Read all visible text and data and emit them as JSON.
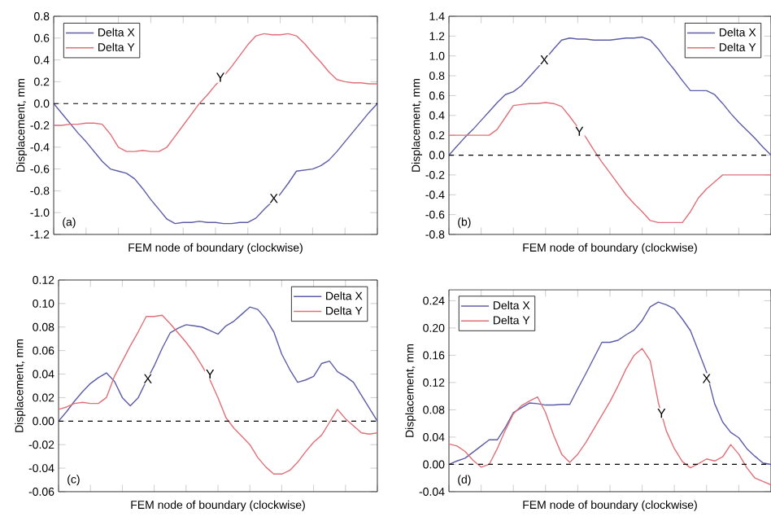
{
  "chart_data": [
    {
      "type": "line",
      "xlabel": "FEM node of boundary (clockwise)",
      "ylabel": "Displacement, mm",
      "marker": "none",
      "legend": "top left",
      "ylim": [
        -1.2,
        0.8
      ],
      "categories": [
        null,
        null,
        null,
        null,
        null,
        null,
        null,
        null,
        null,
        null,
        null,
        null,
        null,
        null,
        null,
        null,
        null,
        null,
        null,
        null,
        null,
        null,
        null,
        null,
        null,
        null,
        null,
        null,
        null,
        null,
        null,
        null,
        null,
        null,
        null,
        null,
        null,
        null,
        null,
        null,
        null
      ],
      "yticks": [
        {
          "value": -1.2,
          "label": "-1.2"
        },
        {
          "value": -1.0,
          "label": "-1.0"
        },
        {
          "value": -0.8,
          "label": "-0.8"
        },
        {
          "value": -0.6,
          "label": "-0.6"
        },
        {
          "value": -0.4,
          "label": "-0.4"
        },
        {
          "value": -0.2,
          "label": "-0.2"
        },
        {
          "value": 0,
          "label": "0.0"
        },
        {
          "value": 0.2,
          "label": "0.2"
        },
        {
          "value": 0.4,
          "label": "0.4"
        },
        {
          "value": 0.6,
          "label": "0.6"
        },
        {
          "value": 0.8,
          "label": "0.8"
        }
      ],
      "ref_lines": [
        {
          "axis": "y",
          "value": 0,
          "line_style": "dashed"
        }
      ],
      "annotations": [
        "(a)",
        {
          "text": "X",
          "y": -0.87
        },
        {
          "text": "Y",
          "y": 0.24
        }
      ],
      "series": [
        {
          "name": "Delta X",
          "color": "#5c5ca8",
          "values": [
            0,
            -0.09,
            -0.18,
            -0.27,
            -0.35,
            -0.44,
            -0.53,
            -0.6,
            -0.62,
            -0.64,
            -0.69,
            -0.78,
            -0.88,
            -0.97,
            -1.06,
            -1.1,
            -1.09,
            -1.09,
            -1.08,
            -1.09,
            -1.09,
            -1.1,
            -1.1,
            -1.09,
            -1.09,
            -1.05,
            -0.97,
            -0.9,
            -0.83,
            -0.73,
            -0.62,
            -0.61,
            -0.6,
            -0.57,
            -0.52,
            -0.44,
            -0.35,
            -0.26,
            -0.17,
            -0.08,
            0
          ]
        },
        {
          "name": "Delta Y",
          "color": "#e07078",
          "values": [
            -0.2,
            -0.2,
            -0.19,
            -0.19,
            -0.18,
            -0.18,
            -0.19,
            -0.28,
            -0.4,
            -0.44,
            -0.44,
            -0.43,
            -0.44,
            -0.44,
            -0.4,
            -0.3,
            -0.2,
            -0.1,
            0,
            0.08,
            0.17,
            0.25,
            0.34,
            0.44,
            0.54,
            0.62,
            0.64,
            0.63,
            0.63,
            0.64,
            0.62,
            0.55,
            0.46,
            0.38,
            0.29,
            0.22,
            0.2,
            0.19,
            0.19,
            0.18,
            0.18
          ]
        }
      ]
    },
    {
      "type": "line",
      "xlabel": "FEM node of boundary (clockwise)",
      "ylabel": "Displacement, mm",
      "marker": "none",
      "legend": "top right",
      "ylim": [
        -0.8,
        1.4
      ],
      "categories": [
        null,
        null,
        null,
        null,
        null,
        null,
        null,
        null,
        null,
        null,
        null,
        null,
        null,
        null,
        null,
        null,
        null,
        null,
        null,
        null,
        null,
        null,
        null,
        null,
        null,
        null,
        null,
        null,
        null,
        null,
        null,
        null,
        null,
        null,
        null,
        null,
        null,
        null,
        null,
        null,
        null
      ],
      "yticks": [
        {
          "value": -0.8,
          "label": "-0.8"
        },
        {
          "value": -0.6,
          "label": "-0.6"
        },
        {
          "value": -0.4,
          "label": "-0.4"
        },
        {
          "value": -0.2,
          "label": "-0.2"
        },
        {
          "value": 0,
          "label": "0.0"
        },
        {
          "value": 0.2,
          "label": "0.2"
        },
        {
          "value": 0.4,
          "label": "0.4"
        },
        {
          "value": 0.6,
          "label": "0.6"
        },
        {
          "value": 0.8,
          "label": "0.8"
        },
        {
          "value": 1.0,
          "label": "1.0"
        },
        {
          "value": 1.2,
          "label": "1.2"
        },
        {
          "value": 1.4,
          "label": "1.4"
        }
      ],
      "ref_lines": [
        {
          "axis": "y",
          "value": 0,
          "line_style": "dashed"
        }
      ],
      "annotations": [
        "(b)",
        {
          "text": "X",
          "y": 0.96
        },
        {
          "text": "Y",
          "y": 0.24
        }
      ],
      "series": [
        {
          "name": "Delta X",
          "color": "#5c5ca8",
          "values": [
            0,
            0.09,
            0.18,
            0.26,
            0.35,
            0.44,
            0.53,
            0.61,
            0.64,
            0.7,
            0.79,
            0.88,
            0.97,
            1.07,
            1.16,
            1.18,
            1.17,
            1.17,
            1.16,
            1.16,
            1.16,
            1.17,
            1.18,
            1.18,
            1.19,
            1.16,
            1.07,
            0.96,
            0.86,
            0.75,
            0.65,
            0.65,
            0.65,
            0.61,
            0.52,
            0.42,
            0.33,
            0.25,
            0.17,
            0.08,
            0
          ]
        },
        {
          "name": "Delta Y",
          "color": "#e07078",
          "values": [
            0.2,
            0.2,
            0.2,
            0.2,
            0.2,
            0.2,
            0.26,
            0.38,
            0.5,
            0.51,
            0.52,
            0.52,
            0.53,
            0.52,
            0.49,
            0.39,
            0.28,
            0.18,
            0.05,
            -0.07,
            -0.18,
            -0.29,
            -0.4,
            -0.49,
            -0.57,
            -0.66,
            -0.68,
            -0.68,
            -0.68,
            -0.68,
            -0.57,
            -0.43,
            -0.34,
            -0.27,
            -0.2,
            -0.2,
            -0.2,
            -0.2,
            -0.2,
            -0.2,
            -0.2
          ]
        }
      ]
    },
    {
      "type": "line",
      "xlabel": "FEM node of boundary (clockwise)",
      "ylabel": "Displacement, mm",
      "marker": "none",
      "legend": "top right",
      "ylim": [
        -0.06,
        0.12
      ],
      "categories": [
        null,
        null,
        null,
        null,
        null,
        null,
        null,
        null,
        null,
        null,
        null,
        null,
        null,
        null,
        null,
        null,
        null,
        null,
        null,
        null,
        null,
        null,
        null,
        null,
        null,
        null,
        null,
        null,
        null,
        null,
        null,
        null,
        null,
        null,
        null,
        null,
        null,
        null,
        null,
        null,
        null
      ],
      "yticks": [
        {
          "value": -0.06,
          "label": "-0.06"
        },
        {
          "value": -0.04,
          "label": "-0.04"
        },
        {
          "value": -0.02,
          "label": "-0.02"
        },
        {
          "value": 0,
          "label": "0.00"
        },
        {
          "value": 0.02,
          "label": "0.02"
        },
        {
          "value": 0.04,
          "label": "0.04"
        },
        {
          "value": 0.06,
          "label": "0.06"
        },
        {
          "value": 0.08,
          "label": "0.08"
        },
        {
          "value": 0.1,
          "label": "0.10"
        },
        {
          "value": 0.12,
          "label": "0.12"
        }
      ],
      "ref_lines": [
        {
          "axis": "y",
          "value": 0,
          "line_style": "dashed"
        }
      ],
      "annotations": [
        "(c)",
        {
          "text": "X",
          "y": 0.036
        },
        {
          "text": "Y",
          "y": 0.04
        }
      ],
      "series": [
        {
          "name": "Delta X",
          "color": "#5c5ca8",
          "values": [
            0,
            0.008,
            0.017,
            0.025,
            0.032,
            0.037,
            0.041,
            0.034,
            0.02,
            0.013,
            0.02,
            0.034,
            0.047,
            0.062,
            0.075,
            0.079,
            0.082,
            0.081,
            0.08,
            0.077,
            0.074,
            0.081,
            0.085,
            0.091,
            0.097,
            0.095,
            0.087,
            0.076,
            0.057,
            0.044,
            0.033,
            0.035,
            0.038,
            0.049,
            0.051,
            0.042,
            0.038,
            0.033,
            0.022,
            0.011,
            0
          ]
        },
        {
          "name": "Delta Y",
          "color": "#e07078",
          "values": [
            0.01,
            0.012,
            0.015,
            0.016,
            0.015,
            0.015,
            0.02,
            0.038,
            0.051,
            0.064,
            0.076,
            0.089,
            0.089,
            0.09,
            0.083,
            0.075,
            0.067,
            0.058,
            0.047,
            0.035,
            0.02,
            0.003,
            -0.006,
            -0.013,
            -0.02,
            -0.031,
            -0.039,
            -0.045,
            -0.045,
            -0.042,
            -0.035,
            -0.026,
            -0.018,
            -0.012,
            -0.001,
            0.01,
            0.002,
            -0.004,
            -0.01,
            -0.011,
            -0.01
          ]
        }
      ]
    },
    {
      "type": "line",
      "xlabel": "FEM node of boundary (clockwise)",
      "ylabel": "Displacement, mm",
      "marker": "none",
      "legend": "top left",
      "ylim": [
        -0.04,
        0.256
      ],
      "categories": [
        null,
        null,
        null,
        null,
        null,
        null,
        null,
        null,
        null,
        null,
        null,
        null,
        null,
        null,
        null,
        null,
        null,
        null,
        null,
        null,
        null,
        null,
        null,
        null,
        null,
        null,
        null,
        null,
        null,
        null,
        null,
        null,
        null,
        null,
        null,
        null,
        null,
        null,
        null,
        null,
        null
      ],
      "yticks": [
        {
          "value": -0.04,
          "label": "-0.04"
        },
        {
          "value": 0,
          "label": "0.00"
        },
        {
          "value": 0.04,
          "label": "0.04"
        },
        {
          "value": 0.08,
          "label": "0.08"
        },
        {
          "value": 0.12,
          "label": "0.12"
        },
        {
          "value": 0.16,
          "label": "0.16"
        },
        {
          "value": 0.2,
          "label": "0.20"
        },
        {
          "value": 0.24,
          "label": "0.24"
        }
      ],
      "ref_lines": [
        {
          "axis": "y",
          "value": 0,
          "line_style": "dashed"
        }
      ],
      "annotations": [
        "(d)",
        {
          "text": "X",
          "y": 0.126
        },
        {
          "text": "Y",
          "y": 0.075
        }
      ],
      "series": [
        {
          "name": "Delta X",
          "color": "#5c5ca8",
          "values": [
            0,
            0.005,
            0.009,
            0.018,
            0.027,
            0.036,
            0.036,
            0.054,
            0.076,
            0.083,
            0.09,
            0.089,
            0.087,
            0.087,
            0.088,
            0.088,
            0.111,
            0.133,
            0.156,
            0.179,
            0.179,
            0.182,
            0.19,
            0.197,
            0.211,
            0.231,
            0.238,
            0.234,
            0.228,
            0.213,
            0.196,
            0.166,
            0.135,
            0.089,
            0.062,
            0.047,
            0.039,
            0.023,
            0.012,
            0.002,
            0
          ]
        },
        {
          "name": "Delta Y",
          "color": "#e07078",
          "values": [
            0.03,
            0.027,
            0.019,
            0.006,
            -0.004,
            0,
            0.023,
            0.05,
            0.074,
            0.086,
            0.093,
            0.099,
            0.076,
            0.043,
            0.015,
            0.003,
            0.015,
            0.032,
            0.052,
            0.072,
            0.092,
            0.115,
            0.14,
            0.16,
            0.17,
            0.152,
            0.091,
            0.049,
            0.023,
            0.004,
            -0.005,
            0.001,
            0.008,
            0.005,
            0.011,
            0.029,
            0.015,
            -0.005,
            -0.02,
            -0.025,
            -0.03
          ]
        }
      ]
    }
  ]
}
